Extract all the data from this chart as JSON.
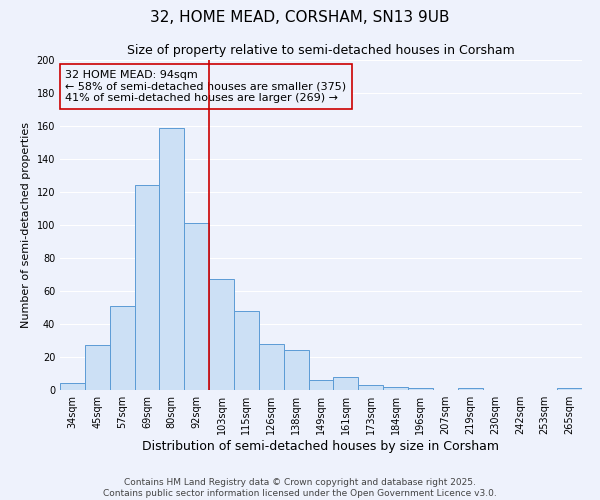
{
  "title": "32, HOME MEAD, CORSHAM, SN13 9UB",
  "subtitle": "Size of property relative to semi-detached houses in Corsham",
  "xlabel": "Distribution of semi-detached houses by size in Corsham",
  "ylabel": "Number of semi-detached properties",
  "bar_labels": [
    "34sqm",
    "45sqm",
    "57sqm",
    "69sqm",
    "80sqm",
    "92sqm",
    "103sqm",
    "115sqm",
    "126sqm",
    "138sqm",
    "149sqm",
    "161sqm",
    "173sqm",
    "184sqm",
    "196sqm",
    "207sqm",
    "219sqm",
    "230sqm",
    "242sqm",
    "253sqm",
    "265sqm"
  ],
  "bar_values": [
    4,
    27,
    51,
    124,
    159,
    101,
    67,
    48,
    28,
    24,
    6,
    8,
    3,
    2,
    1,
    0,
    1,
    0,
    0,
    0,
    1
  ],
  "ylim": [
    0,
    200
  ],
  "yticks": [
    0,
    20,
    40,
    60,
    80,
    100,
    120,
    140,
    160,
    180,
    200
  ],
  "bar_color": "#cce0f5",
  "bar_edge_color": "#5b9bd5",
  "vline_x_index": 5,
  "vline_color": "#cc0000",
  "annotation_title": "32 HOME MEAD: 94sqm",
  "annotation_line1": "← 58% of semi-detached houses are smaller (375)",
  "annotation_line2": "41% of semi-detached houses are larger (269) →",
  "annotation_box_edge": "#cc0000",
  "background_color": "#eef2fc",
  "grid_color": "#ffffff",
  "footer_line1": "Contains HM Land Registry data © Crown copyright and database right 2025.",
  "footer_line2": "Contains public sector information licensed under the Open Government Licence v3.0.",
  "title_fontsize": 11,
  "subtitle_fontsize": 9,
  "xlabel_fontsize": 9,
  "ylabel_fontsize": 8,
  "tick_fontsize": 7,
  "annotation_fontsize": 8,
  "footer_fontsize": 6.5
}
